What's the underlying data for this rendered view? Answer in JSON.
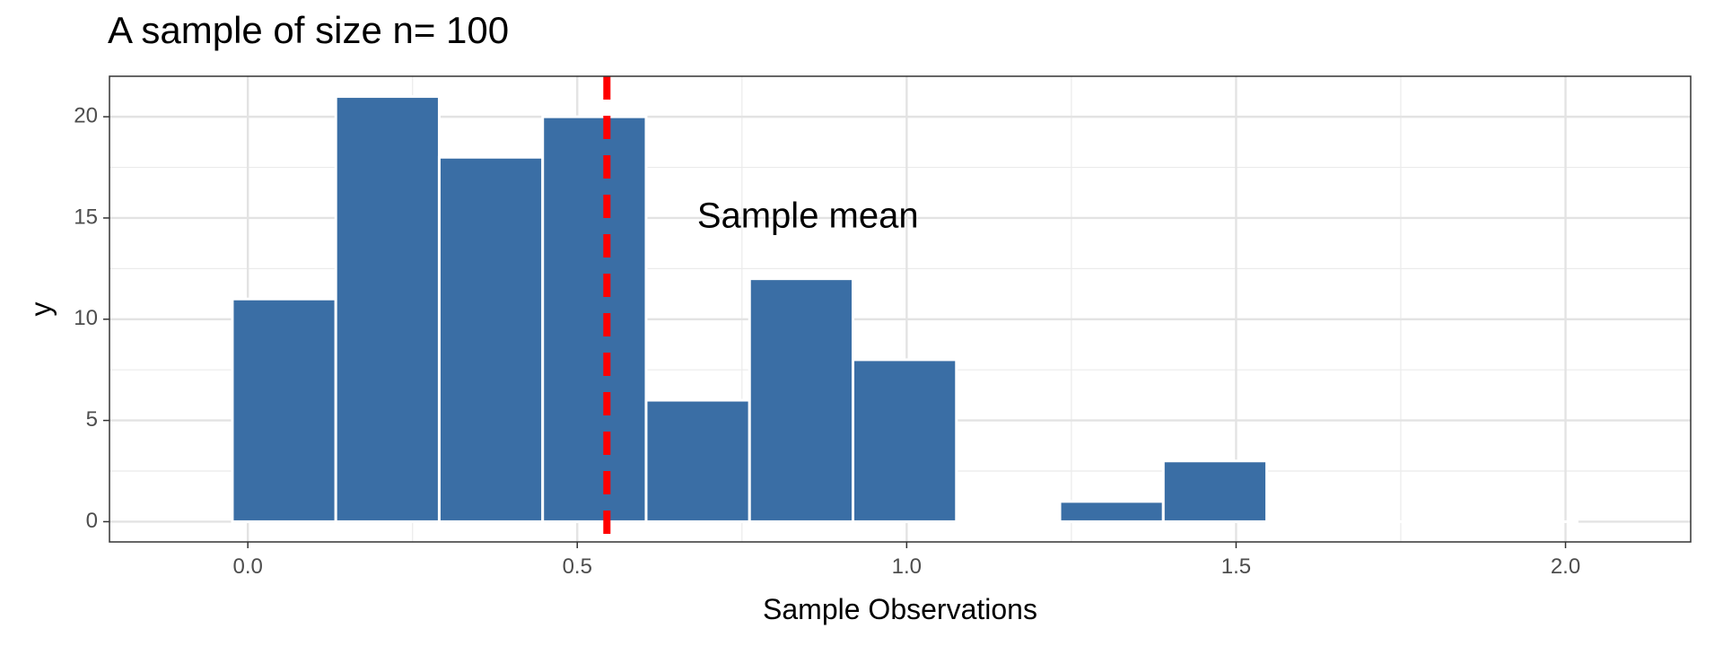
{
  "chart_data": {
    "type": "bar",
    "title": "A sample of size n= 100",
    "xlabel": "Sample Observations",
    "ylabel": "y",
    "xlim": [
      -0.21,
      2.19
    ],
    "ylim": [
      -1,
      22
    ],
    "xticks": [
      0.0,
      0.5,
      1.0,
      1.5,
      2.0
    ],
    "xtick_labels": [
      "0.0",
      "0.5",
      "1.0",
      "1.5",
      "2.0"
    ],
    "yticks": [
      0,
      5,
      10,
      15,
      20
    ],
    "ytick_labels": [
      "0",
      "5",
      "10",
      "15",
      "20"
    ],
    "bin_width": 0.157,
    "bins": [
      {
        "center": 0.055,
        "count": 11
      },
      {
        "center": 0.212,
        "count": 21
      },
      {
        "center": 0.369,
        "count": 18
      },
      {
        "center": 0.526,
        "count": 20
      },
      {
        "center": 0.683,
        "count": 6
      },
      {
        "center": 0.84,
        "count": 12
      },
      {
        "center": 0.997,
        "count": 8
      },
      {
        "center": 1.154,
        "count": 0
      },
      {
        "center": 1.311,
        "count": 1
      },
      {
        "center": 1.468,
        "count": 3
      },
      {
        "center": 1.625,
        "count": 0
      },
      {
        "center": 1.782,
        "count": 0
      },
      {
        "center": 1.939,
        "count": 0
      }
    ],
    "mean_line": {
      "x": 0.545,
      "color": "#ff0000",
      "style": "dashed"
    },
    "annotation": {
      "text": "Sample mean",
      "x": 0.85,
      "y": 15
    },
    "bar_color": "#3a6ea5",
    "grid": true
  }
}
